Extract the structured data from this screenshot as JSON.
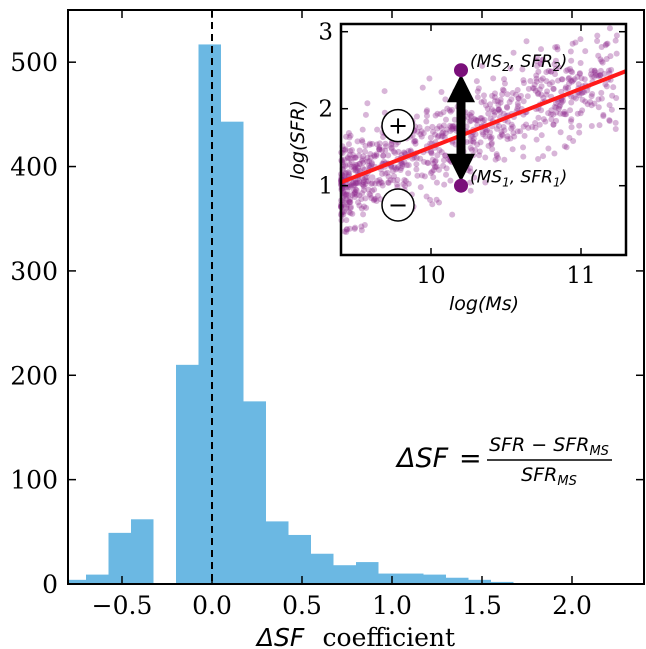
{
  "chart_data": [
    {
      "type": "bar",
      "subtype": "histogram",
      "bar_color": "#6bb8e3",
      "bin_width": 0.125,
      "bins": [
        {
          "start": -0.825,
          "value": 4
        },
        {
          "start": -0.7,
          "value": 9
        },
        {
          "start": -0.575,
          "value": 49
        },
        {
          "start": -0.45,
          "value": 62
        },
        {
          "start": -0.325,
          "value": 0
        },
        {
          "start": -0.2,
          "value": 210
        },
        {
          "start": -0.075,
          "value": 517
        },
        {
          "start": 0.05,
          "value": 443
        },
        {
          "start": 0.175,
          "value": 175
        },
        {
          "start": 0.3,
          "value": 60
        },
        {
          "start": 0.425,
          "value": 47
        },
        {
          "start": 0.55,
          "value": 29
        },
        {
          "start": 0.675,
          "value": 18
        },
        {
          "start": 0.8,
          "value": 21
        },
        {
          "start": 0.925,
          "value": 10
        },
        {
          "start": 1.05,
          "value": 10
        },
        {
          "start": 1.175,
          "value": 9
        },
        {
          "start": 1.3,
          "value": 6
        },
        {
          "start": 1.425,
          "value": 4
        },
        {
          "start": 1.55,
          "value": 2
        }
      ],
      "xlim": [
        -0.8,
        2.4
      ],
      "ylim": [
        0,
        550
      ],
      "xticks": [
        "−0.5",
        "0.0",
        "0.5",
        "1.0",
        "1.5",
        "2.0"
      ],
      "xtick_values": [
        -0.5,
        0.0,
        0.5,
        1.0,
        1.5,
        2.0
      ],
      "yticks": [
        "0",
        "100",
        "200",
        "300",
        "400",
        "500"
      ],
      "ytick_values": [
        0,
        100,
        200,
        300,
        400,
        500
      ],
      "xlabel_symbol": "ΔSF",
      "xlabel_word": "coefficient",
      "reference_line": {
        "x": 0.0,
        "style": "dashed",
        "color": "#000000"
      },
      "formula": {
        "lhs": "ΔSF",
        "equals": "=",
        "numerator": "SFR − SFR",
        "numerator_sub": "MS",
        "denominator": "SFR",
        "denominator_sub": "MS"
      }
    },
    {
      "type": "scatter",
      "inset": true,
      "xlabel": "log(Ms)",
      "ylabel": "log(SFR)",
      "xlim": [
        9.4,
        11.3
      ],
      "ylim": [
        0.1,
        3.1
      ],
      "xticks": [
        "10",
        "11"
      ],
      "xtick_values": [
        10,
        11
      ],
      "yticks": [
        "1",
        "2",
        "3"
      ],
      "ytick_values": [
        1,
        2,
        3
      ],
      "point_color": "#8e2a8e",
      "fit_line": {
        "color": "#ff1a1a",
        "slope": 0.76,
        "intercept": -6.1
      },
      "arrow": {
        "x": 10.2,
        "y_from": 1.0,
        "y_to": 2.5,
        "color": "#000000"
      },
      "highlight_points": [
        {
          "x": 10.2,
          "y": 2.5,
          "label": "(MS",
          "sub1": "2",
          "mid": ", SFR",
          "sub2": "2",
          "end": ")"
        },
        {
          "x": 10.2,
          "y": 1.0,
          "label": "(MS",
          "sub1": "1",
          "mid": ", SFR",
          "sub2": "1",
          "end": ")"
        }
      ],
      "region_markers": [
        {
          "symbol": "+",
          "x": 9.78,
          "y": 1.78
        },
        {
          "symbol": "−",
          "x": 9.78,
          "y": 0.75
        }
      ]
    }
  ]
}
